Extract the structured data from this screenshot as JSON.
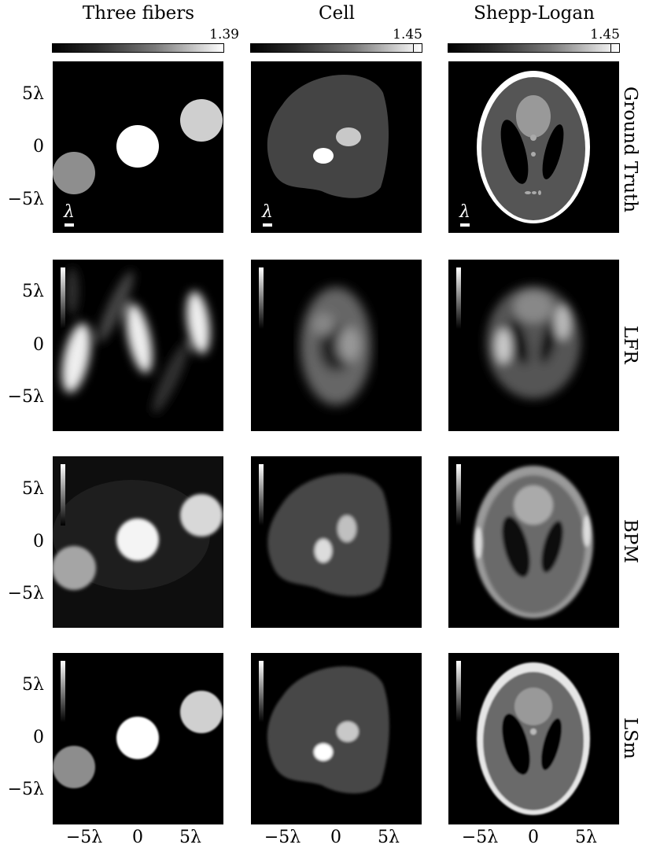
{
  "columns": [
    {
      "title": "Three fibers",
      "cbar_max": "1.39"
    },
    {
      "title": "Cell",
      "cbar_max": "1.45"
    },
    {
      "title": "Shepp-Logan",
      "cbar_max": "1.45"
    }
  ],
  "rows": [
    {
      "label": "Ground Truth"
    },
    {
      "label": "LFR"
    },
    {
      "label": "BPM"
    },
    {
      "label": "LSm"
    }
  ],
  "axes": {
    "y_ticks": [
      "5λ",
      "0",
      "−5λ"
    ],
    "x_ticks": [
      "−5λ",
      "0",
      "5λ"
    ]
  },
  "scale_bar_label": "λ",
  "colors": {
    "background": "#000000",
    "foreground": "#ffffff"
  }
}
